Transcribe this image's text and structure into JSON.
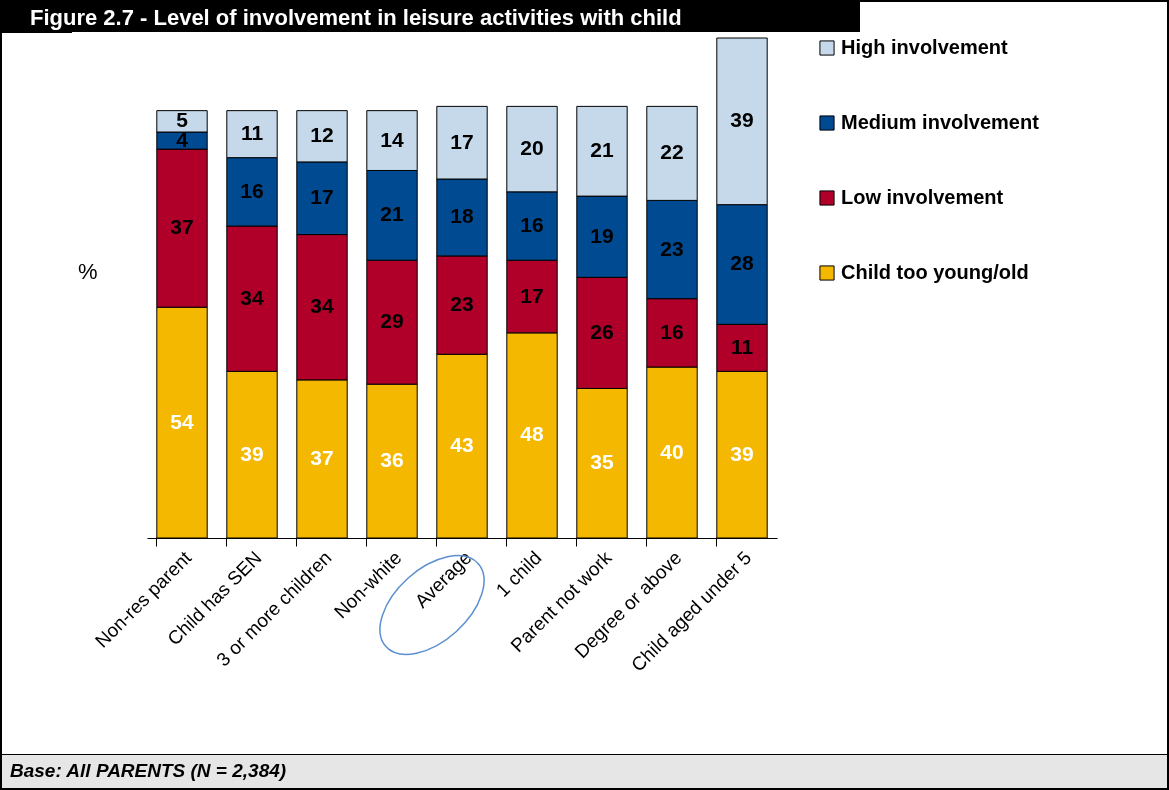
{
  "chart_data": {
    "type": "bar",
    "title": "Figure 2.7 - Level of involvement in leisure activities with child",
    "ylabel": "%",
    "stacked": true,
    "data_labels": true,
    "legend": "right",
    "grid": false,
    "categories": [
      "Non-res parent",
      "Child has SEN",
      "3 or more children",
      "Non-white",
      "Average",
      "1 child",
      "Parent not work",
      "Degree or above",
      "Child aged under 5"
    ],
    "series": [
      {
        "name": "Child too young/old",
        "color": "#f5b800",
        "values": [
          54,
          39,
          37,
          36,
          43,
          48,
          35,
          40,
          39
        ]
      },
      {
        "name": "Low involvement",
        "color": "#b0002a",
        "values": [
          37,
          34,
          34,
          29,
          23,
          17,
          26,
          16,
          11
        ]
      },
      {
        "name": "Medium involvement",
        "color": "#004a91",
        "values": [
          4,
          16,
          17,
          21,
          18,
          16,
          19,
          23,
          28
        ]
      },
      {
        "name": "High involvement",
        "color": "#c5d9ea",
        "values": [
          5,
          11,
          12,
          14,
          17,
          20,
          21,
          22,
          39
        ]
      }
    ],
    "annotations": [
      "Base: All PARENTS (N = 2,384)"
    ]
  }
}
